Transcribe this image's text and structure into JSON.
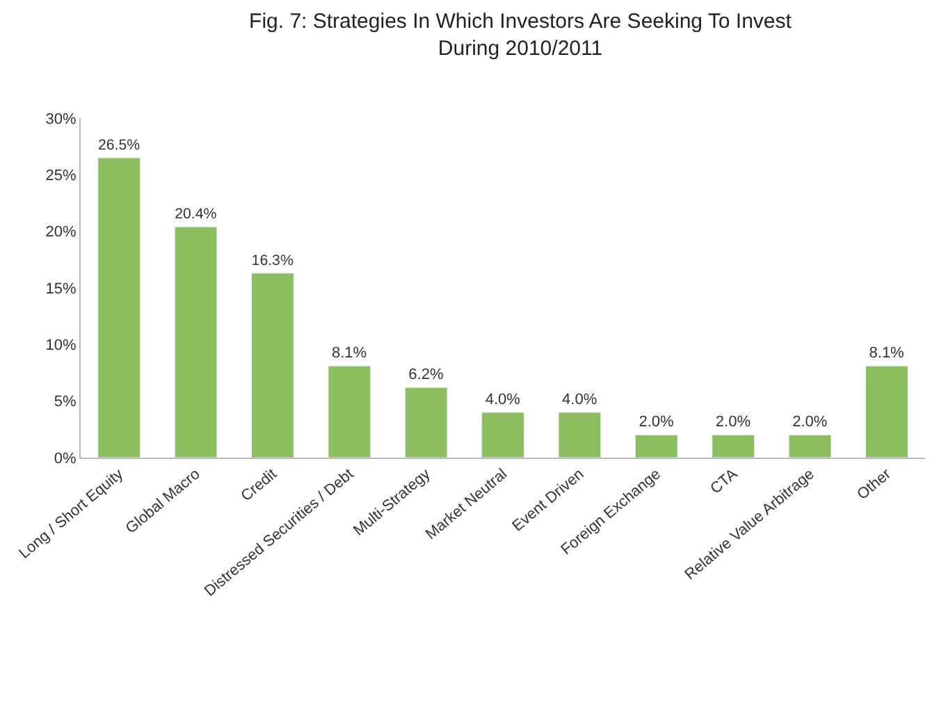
{
  "chart_data": {
    "type": "bar",
    "title": "Fig. 7: Strategies In Which Investors Are Seeking To Invest During 2010/2011",
    "categories": [
      "Long / Short Equity",
      "Global Macro",
      "Credit",
      "Distressed Securities / Debt",
      "Multi-Strategy",
      "Market Neutral",
      "Event Driven",
      "Foreign Exchange",
      "CTA",
      "Relative Value Arbitrage",
      "Other"
    ],
    "values": [
      26.5,
      20.4,
      16.3,
      8.1,
      6.2,
      4.0,
      4.0,
      2.0,
      2.0,
      2.0,
      8.1
    ],
    "value_labels": [
      "26.5%",
      "20.4%",
      "16.3%",
      "8.1%",
      "6.2%",
      "4.0%",
      "4.0%",
      "2.0%",
      "2.0%",
      "2.0%",
      "8.1%"
    ],
    "color": "#8cbd5f",
    "ylim": [
      0,
      30
    ],
    "yticks": [
      {
        "value": 0,
        "label": "0%"
      },
      {
        "value": 5,
        "label": "5%"
      },
      {
        "value": 10,
        "label": "10%"
      },
      {
        "value": 15,
        "label": "15%"
      },
      {
        "value": 20,
        "label": "20%"
      },
      {
        "value": 25,
        "label": "25%"
      },
      {
        "value": 30,
        "label": "30%"
      }
    ],
    "grid": false,
    "legend": false
  }
}
